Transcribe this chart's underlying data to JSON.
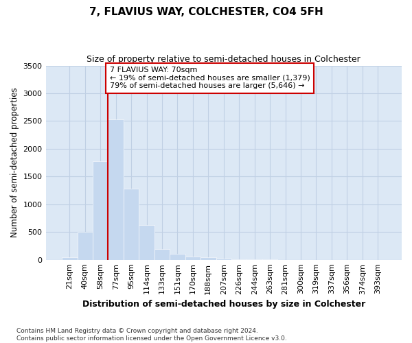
{
  "title_line1": "7, FLAVIUS WAY, COLCHESTER, CO4 5FH",
  "title_line2": "Size of property relative to semi-detached houses in Colchester",
  "xlabel": "Distribution of semi-detached houses by size in Colchester",
  "ylabel": "Number of semi-detached properties",
  "footnote": "Contains HM Land Registry data © Crown copyright and database right 2024.\nContains public sector information licensed under the Open Government Licence v3.0.",
  "bar_labels": [
    "21sqm",
    "40sqm",
    "58sqm",
    "77sqm",
    "95sqm",
    "114sqm",
    "133sqm",
    "151sqm",
    "170sqm",
    "188sqm",
    "207sqm",
    "226sqm",
    "244sqm",
    "263sqm",
    "281sqm",
    "300sqm",
    "319sqm",
    "337sqm",
    "356sqm",
    "374sqm",
    "393sqm"
  ],
  "bar_values": [
    50,
    500,
    1780,
    2530,
    1280,
    630,
    200,
    110,
    55,
    50,
    20,
    8,
    5,
    3,
    2,
    1,
    1,
    0,
    0,
    0,
    0
  ],
  "bar_color": "#c5d8ef",
  "bar_edge_color": "#c5d8ef",
  "grid_color": "#c0d0e4",
  "bg_color": "#dce8f5",
  "vline_color": "#cc0000",
  "annotation_text": "7 FLAVIUS WAY: 70sqm\n← 19% of semi-detached houses are smaller (1,379)\n79% of semi-detached houses are larger (5,646) →",
  "annotation_box_edgecolor": "#cc0000",
  "ylim": [
    0,
    3500
  ],
  "yticks": [
    0,
    500,
    1000,
    1500,
    2000,
    2500,
    3000,
    3500
  ]
}
